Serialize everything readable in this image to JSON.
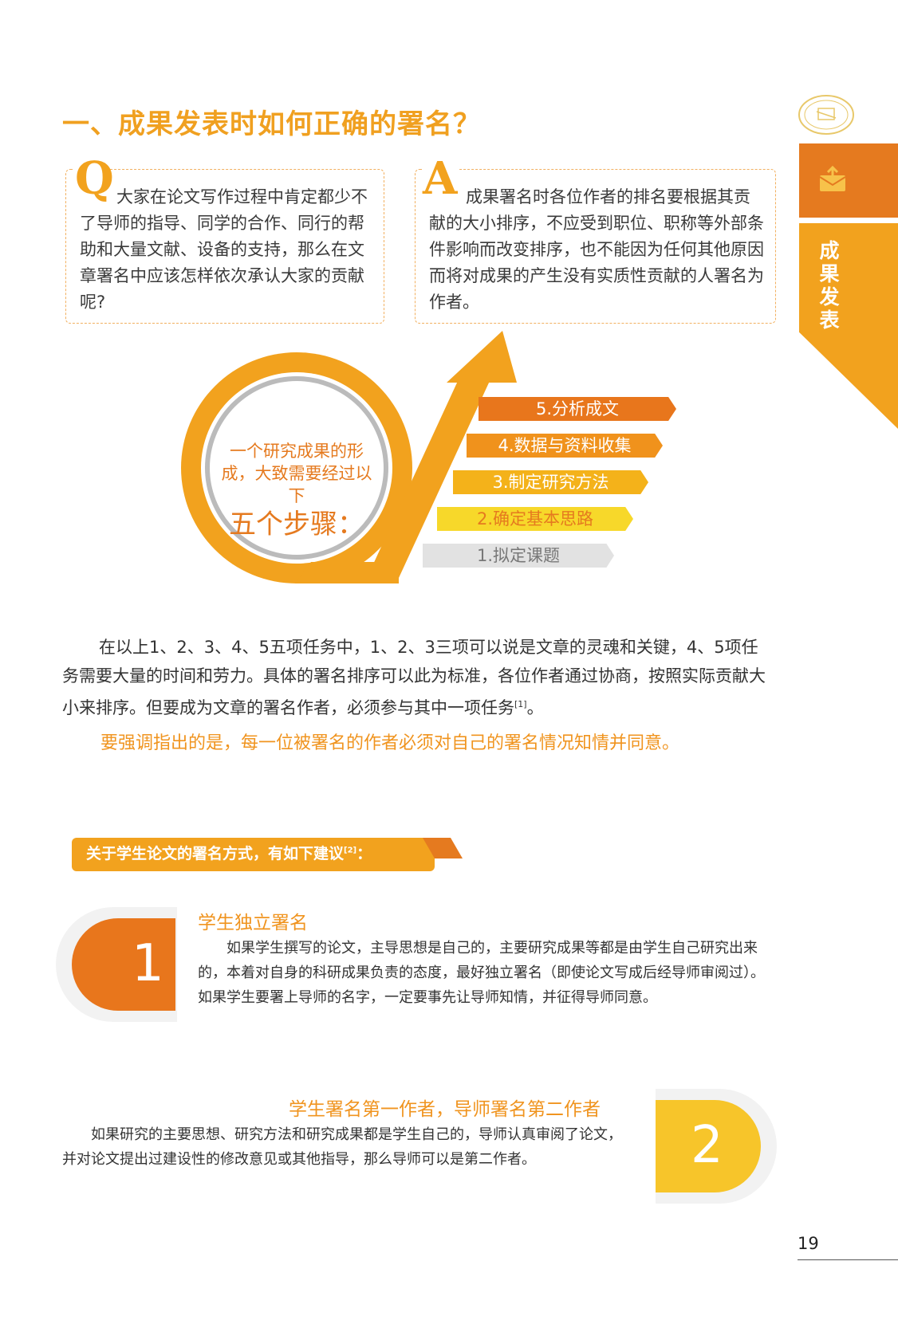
{
  "header": {
    "title": "一、成果发表时如何正确的署名？"
  },
  "side_tab": {
    "label": "成果发表",
    "colors": {
      "orange": "#e57a1f",
      "yellow": "#f2a21e"
    }
  },
  "qa": {
    "q_letter": "Q",
    "q_text": "大家在论文写作过程中肯定都少不了导师的指导、同学的合作、同行的帮助和大量文献、设备的支持，那么在文章署名中应该怎样依次承认大家的贡献呢?",
    "a_letter": "A",
    "a_text": "成果署名时各位作者的排名要根据其贡献的大小排序，不应受到职位、职称等外部条件影响而改变排序，也不能因为任何其他原因而将对成果的产生没有实质性贡献的人署名为作者。"
  },
  "steps_graphic": {
    "circle_text": "一个研究成果的形成，大致需要经过以下",
    "circle_big": "五个步骤：",
    "steps": [
      {
        "label": "5.分析成文",
        "color": "#e8761c"
      },
      {
        "label": "4.数据与资料收集",
        "color": "#f0921c"
      },
      {
        "label": "3.制定研究方法",
        "color": "#f4b21a"
      },
      {
        "label": "2.确定基本思路",
        "color": "#f7d82a"
      },
      {
        "label": "1.拟定课题",
        "color": "#e2e2e2"
      }
    ]
  },
  "body": {
    "para1_main": "在以上1、2、3、4、5五项任务中，1、2、3三项可以说是文章的灵魂和关键，4、5项任务需要大量的时间和劳力。具体的署名排序可以此为标准，各位作者通过协商，按照实际贡献大小来排序。但要成为文章的署名作者，必须参与其中一项任务",
    "para1_ref": "[1]",
    "para1_end": "。",
    "emphasis": "要强调指出的是，每一位被署名的作者必须对自己的署名情况知情并同意。"
  },
  "banner": {
    "text": "关于学生论文的署名方式，有如下建议",
    "ref": "[2]",
    "colon": "："
  },
  "cards": [
    {
      "number": "1",
      "title": "学生独立署名",
      "text": "如果学生撰写的论文，主导思想是自己的，主要研究成果等都是由学生自己研究出来的，本着对自身的科研成果负责的态度，最好独立署名（即使论文写成后经导师审阅过）。如果学生要署上导师的名字，一定要事先让导师知情，并征得导师同意。"
    },
    {
      "number": "2",
      "title": "学生署名第一作者，导师署名第二作者",
      "text": "如果研究的主要思想、研究方法和研究成果都是学生自己的，导师认真审阅了论文，并对论文提出过建设性的修改意见或其他指导，那么导师可以是第二作者。"
    }
  ],
  "footer": {
    "page_number": "19"
  }
}
